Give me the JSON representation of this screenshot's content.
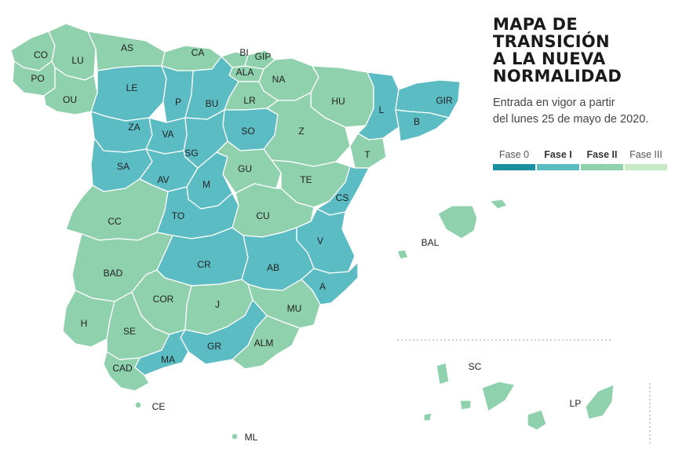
{
  "title_lines": [
    "MAPA DE",
    "TRANSICIÓN",
    "A LA NUEVA",
    "NORMALIDAD"
  ],
  "subtitle_lines": [
    "Entrada en vigor a partir",
    "del lunes 25 de mayo de 2020."
  ],
  "colors": {
    "fase0": "#1b8fa0",
    "fase1": "#5bbcc3",
    "fase2": "#8fd0ad",
    "fase3": "#c7ecc5",
    "border": "#ffffff"
  },
  "legend": [
    {
      "label": "Fase 0",
      "bold": false,
      "phase": "fase0"
    },
    {
      "label": "Fase I",
      "bold": true,
      "phase": "fase1"
    },
    {
      "label": "Fase II",
      "bold": true,
      "phase": "fase2"
    },
    {
      "label": "Fase III",
      "bold": false,
      "phase": "fase3"
    }
  ],
  "provinces": [
    {
      "code": "CO",
      "phase": "fase2"
    },
    {
      "code": "LU",
      "phase": "fase2"
    },
    {
      "code": "PO",
      "phase": "fase2"
    },
    {
      "code": "OU",
      "phase": "fase2"
    },
    {
      "code": "AS",
      "phase": "fase2"
    },
    {
      "code": "CA",
      "phase": "fase2"
    },
    {
      "code": "BI",
      "phase": "fase2"
    },
    {
      "code": "GIP",
      "phase": "fase2"
    },
    {
      "code": "ALA",
      "phase": "fase2"
    },
    {
      "code": "NA",
      "phase": "fase2"
    },
    {
      "code": "LE",
      "phase": "fase1"
    },
    {
      "code": "P",
      "phase": "fase1"
    },
    {
      "code": "BU",
      "phase": "fase1"
    },
    {
      "code": "LR",
      "phase": "fase2"
    },
    {
      "code": "HU",
      "phase": "fase2"
    },
    {
      "code": "L",
      "phase": "fase1"
    },
    {
      "code": "GIR",
      "phase": "fase1"
    },
    {
      "code": "B",
      "phase": "fase1"
    },
    {
      "code": "ZA",
      "phase": "fase1"
    },
    {
      "code": "VA",
      "phase": "fase1"
    },
    {
      "code": "SO",
      "phase": "fase1"
    },
    {
      "code": "Z",
      "phase": "fase2"
    },
    {
      "code": "T",
      "phase": "fase2"
    },
    {
      "code": "SA",
      "phase": "fase1"
    },
    {
      "code": "SG",
      "phase": "fase1"
    },
    {
      "code": "AV",
      "phase": "fase1"
    },
    {
      "code": "M",
      "phase": "fase1"
    },
    {
      "code": "GU",
      "phase": "fase2"
    },
    {
      "code": "TE",
      "phase": "fase2"
    },
    {
      "code": "CS",
      "phase": "fase1"
    },
    {
      "code": "CC",
      "phase": "fase2"
    },
    {
      "code": "TO",
      "phase": "fase1"
    },
    {
      "code": "CU",
      "phase": "fase2"
    },
    {
      "code": "V",
      "phase": "fase1"
    },
    {
      "code": "BAD",
      "phase": "fase2"
    },
    {
      "code": "CR",
      "phase": "fase1"
    },
    {
      "code": "AB",
      "phase": "fase1"
    },
    {
      "code": "A",
      "phase": "fase1"
    },
    {
      "code": "COR",
      "phase": "fase2"
    },
    {
      "code": "J",
      "phase": "fase2"
    },
    {
      "code": "MU",
      "phase": "fase2"
    },
    {
      "code": "H",
      "phase": "fase2"
    },
    {
      "code": "SE",
      "phase": "fase2"
    },
    {
      "code": "GR",
      "phase": "fase1"
    },
    {
      "code": "ALM",
      "phase": "fase2"
    },
    {
      "code": "MA",
      "phase": "fase1"
    },
    {
      "code": "CAD",
      "phase": "fase2"
    },
    {
      "code": "BAL",
      "phase": "fase2"
    },
    {
      "code": "SC",
      "phase": "fase2"
    },
    {
      "code": "LP",
      "phase": "fase2"
    },
    {
      "code": "CE",
      "phase": "fase2"
    },
    {
      "code": "ML",
      "phase": "fase2"
    }
  ]
}
